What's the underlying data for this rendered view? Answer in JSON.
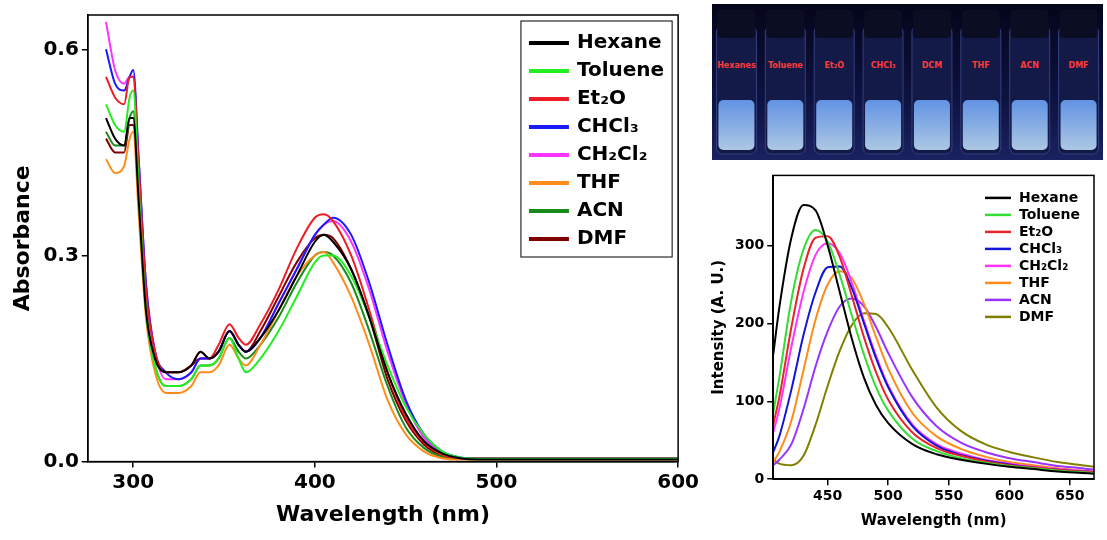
{
  "chart_data": [
    {
      "type": "line",
      "x_label": "Wavelength (nm)",
      "y_label": "Absorbance",
      "xlim": [
        275,
        600
      ],
      "xticks": [
        300,
        400,
        500,
        600
      ],
      "ylim": [
        0,
        0.65
      ],
      "yticks": [
        {
          "value": 0,
          "label": "0.0"
        },
        0.3,
        0.6
      ],
      "grid": false,
      "legend": "upper right",
      "x": [
        285,
        290,
        295,
        298,
        300,
        303,
        307,
        312,
        318,
        325,
        332,
        337,
        342,
        347,
        353,
        358,
        362,
        370,
        380,
        390,
        400,
        405,
        410,
        420,
        430,
        440,
        450,
        460,
        470,
        480,
        490,
        500,
        550,
        600
      ],
      "series": [
        {
          "name": "Hexane",
          "color": "#000000",
          "values": [
            0.5,
            0.47,
            0.46,
            0.5,
            0.5,
            0.38,
            0.22,
            0.15,
            0.13,
            0.13,
            0.14,
            0.16,
            0.15,
            0.16,
            0.19,
            0.17,
            0.16,
            0.18,
            0.22,
            0.27,
            0.32,
            0.33,
            0.32,
            0.28,
            0.21,
            0.13,
            0.07,
            0.03,
            0.012,
            0.005,
            0.003,
            0.003,
            0.003,
            0.003
          ]
        },
        {
          "name": "Toluene",
          "color": "#22ee22",
          "values": [
            0.52,
            0.49,
            0.48,
            0.53,
            0.54,
            0.4,
            0.22,
            0.14,
            0.11,
            0.11,
            0.12,
            0.14,
            0.14,
            0.15,
            0.18,
            0.15,
            0.13,
            0.15,
            0.19,
            0.24,
            0.29,
            0.3,
            0.3,
            0.27,
            0.21,
            0.14,
            0.08,
            0.04,
            0.015,
            0.006,
            0.004,
            0.004,
            0.004,
            0.004
          ]
        },
        {
          "name": "Et₂O",
          "color": "#ee1c24",
          "values": [
            0.56,
            0.53,
            0.52,
            0.56,
            0.56,
            0.43,
            0.25,
            0.16,
            0.13,
            0.13,
            0.14,
            0.16,
            0.15,
            0.17,
            0.2,
            0.18,
            0.17,
            0.2,
            0.25,
            0.31,
            0.355,
            0.36,
            0.35,
            0.3,
            0.22,
            0.13,
            0.065,
            0.028,
            0.01,
            0.005,
            0.004,
            0.004,
            0.004,
            0.004
          ]
        },
        {
          "name": "CHCl₃",
          "color": "#1a1aff",
          "values": [
            0.6,
            0.55,
            0.54,
            0.56,
            0.57,
            0.44,
            0.26,
            0.16,
            0.13,
            0.12,
            0.13,
            0.15,
            0.15,
            0.16,
            0.19,
            0.17,
            0.16,
            0.18,
            0.23,
            0.28,
            0.33,
            0.345,
            0.355,
            0.33,
            0.26,
            0.17,
            0.09,
            0.04,
            0.015,
            0.006,
            0.004,
            0.004,
            0.004,
            0.004
          ]
        },
        {
          "name": "CH₂Cl₂",
          "color": "#ff33ff",
          "values": [
            0.64,
            0.57,
            0.55,
            0.56,
            0.56,
            0.44,
            0.26,
            0.16,
            0.12,
            0.12,
            0.13,
            0.15,
            0.15,
            0.16,
            0.19,
            0.17,
            0.16,
            0.18,
            0.23,
            0.28,
            0.33,
            0.345,
            0.35,
            0.32,
            0.25,
            0.16,
            0.085,
            0.035,
            0.013,
            0.005,
            0.004,
            0.004,
            0.004,
            0.004
          ]
        },
        {
          "name": "THF",
          "color": "#ff8c1a",
          "values": [
            0.44,
            0.42,
            0.43,
            0.47,
            0.48,
            0.36,
            0.21,
            0.13,
            0.1,
            0.1,
            0.11,
            0.13,
            0.13,
            0.14,
            0.17,
            0.15,
            0.14,
            0.17,
            0.22,
            0.27,
            0.3,
            0.305,
            0.29,
            0.24,
            0.17,
            0.09,
            0.04,
            0.015,
            0.005,
            0.003,
            0.003,
            0.003,
            0.003,
            0.003
          ]
        },
        {
          "name": "ACN",
          "color": "#1a8a1a",
          "values": [
            0.48,
            0.46,
            0.46,
            0.5,
            0.51,
            0.39,
            0.22,
            0.14,
            0.11,
            0.11,
            0.12,
            0.14,
            0.14,
            0.15,
            0.18,
            0.16,
            0.15,
            0.17,
            0.21,
            0.26,
            0.3,
            0.305,
            0.3,
            0.26,
            0.19,
            0.11,
            0.05,
            0.02,
            0.007,
            0.004,
            0.004,
            0.004,
            0.004,
            0.004
          ]
        },
        {
          "name": "DMF",
          "color": "#800000",
          "values": [
            0.47,
            0.45,
            0.45,
            0.49,
            0.49,
            0.38,
            0.22,
            0.15,
            0.13,
            0.13,
            0.14,
            0.15,
            0.15,
            0.16,
            0.19,
            0.17,
            0.16,
            0.19,
            0.24,
            0.29,
            0.325,
            0.33,
            0.325,
            0.28,
            0.21,
            0.12,
            0.06,
            0.025,
            0.009,
            0.005,
            0.005,
            0.005,
            0.005,
            0.005
          ]
        }
      ]
    },
    {
      "type": "line",
      "x_label": "Wavelength (nm)",
      "y_label": "Intensity (A. U.)",
      "xlim": [
        405,
        670
      ],
      "xticks": [
        450,
        500,
        550,
        600,
        650
      ],
      "ylim": [
        0,
        390
      ],
      "yticks": [
        0,
        100,
        200,
        300
      ],
      "grid": false,
      "legend": "upper right",
      "x": [
        405,
        410,
        420,
        430,
        440,
        450,
        460,
        470,
        480,
        490,
        500,
        520,
        540,
        560,
        580,
        600,
        620,
        640,
        660,
        670
      ],
      "series": [
        {
          "name": "Hexane",
          "color": "#000000",
          "values": [
            160,
            220,
            310,
            352,
            345,
            300,
            240,
            180,
            130,
            95,
            72,
            45,
            32,
            25,
            20,
            16,
            13,
            10,
            8,
            7
          ]
        },
        {
          "name": "Toluene",
          "color": "#33dd33",
          "values": [
            85,
            130,
            230,
            295,
            320,
            305,
            262,
            210,
            160,
            118,
            88,
            52,
            36,
            27,
            21,
            17,
            14,
            11,
            9,
            8
          ]
        },
        {
          "name": "Et₂O",
          "color": "#e8242a",
          "values": [
            70,
            105,
            195,
            270,
            310,
            312,
            285,
            235,
            182,
            137,
            102,
            60,
            40,
            30,
            23,
            18,
            15,
            12,
            10,
            9
          ]
        },
        {
          "name": "CHCl₃",
          "color": "#1414d8",
          "values": [
            35,
            55,
            115,
            185,
            240,
            272,
            273,
            245,
            200,
            155,
            118,
            68,
            43,
            31,
            24,
            19,
            15,
            12,
            10,
            9
          ]
        },
        {
          "name": "CH₂Cl₂",
          "color": "#ff33ff",
          "values": [
            60,
            90,
            170,
            240,
            288,
            303,
            290,
            252,
            203,
            158,
            120,
            70,
            45,
            33,
            25,
            20,
            16,
            13,
            11,
            10
          ]
        },
        {
          "name": "THF",
          "color": "#ff8c1a",
          "values": [
            22,
            35,
            75,
            140,
            205,
            250,
            267,
            258,
            225,
            182,
            142,
            85,
            55,
            39,
            29,
            22,
            18,
            14,
            11,
            10
          ]
        },
        {
          "name": "ACN",
          "color": "#9933ff",
          "values": [
            18,
            25,
            45,
            90,
            145,
            190,
            222,
            232,
            222,
            195,
            162,
            105,
            68,
            47,
            35,
            27,
            22,
            17,
            14,
            12
          ]
        },
        {
          "name": "DMF",
          "color": "#808000",
          "values": [
            25,
            20,
            18,
            30,
            70,
            120,
            165,
            198,
            213,
            212,
            195,
            140,
            92,
            62,
            45,
            35,
            28,
            22,
            18,
            16
          ]
        }
      ]
    }
  ],
  "photo": {
    "labels": [
      "Hexanes",
      "Toluene",
      "Et₂O",
      "CHCl₃",
      "DCM",
      "THF",
      "ACN",
      "DMF"
    ]
  }
}
